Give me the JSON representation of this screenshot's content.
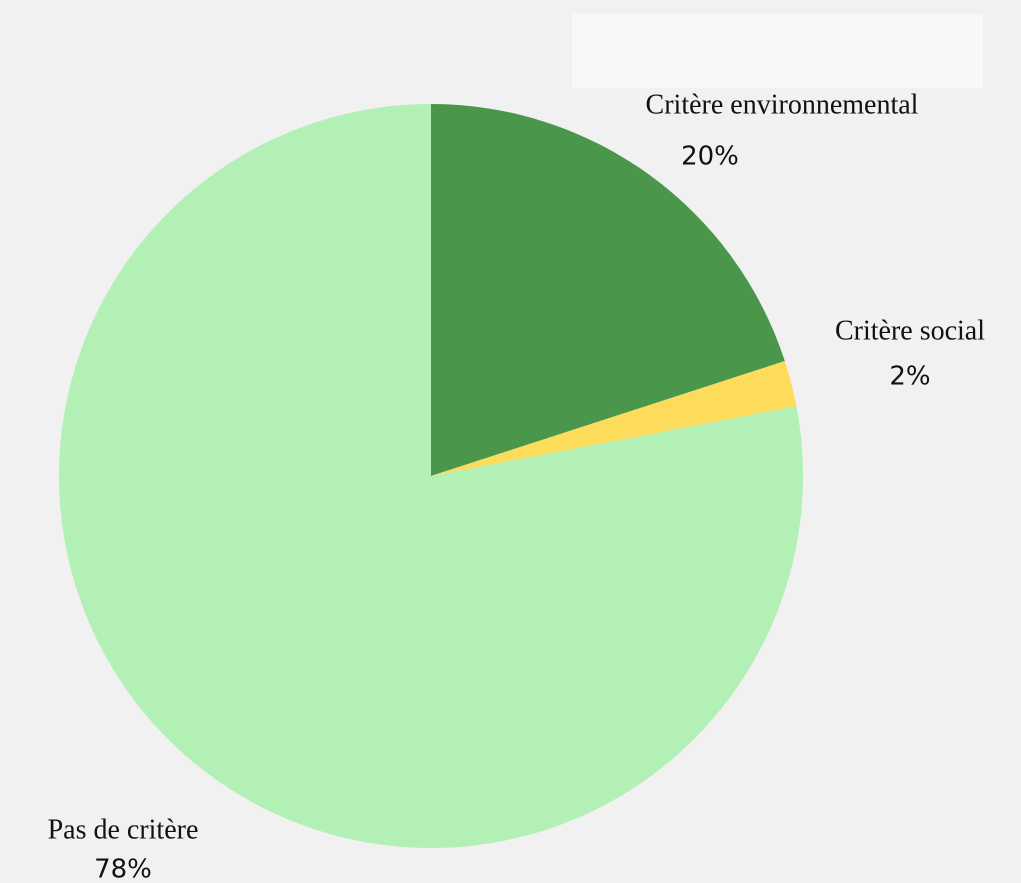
{
  "chart_data": {
    "type": "pie",
    "categories": [
      "Critère environnemental",
      "Critère social",
      "Pas de critère"
    ],
    "values": [
      20,
      2,
      78
    ],
    "value_labels": [
      "20%",
      "2%",
      "78%"
    ],
    "colors": [
      "#4a974c",
      "#fddc5c",
      "#b3f0b5"
    ]
  }
}
